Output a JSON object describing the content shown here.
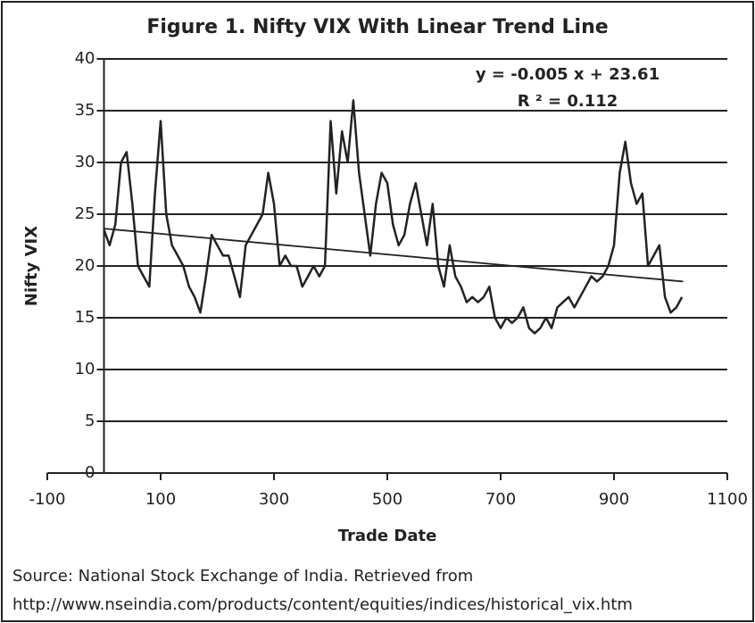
{
  "chart_data": {
    "type": "line",
    "title": "Figure 1. Nifty VIX With Linear Trend Line",
    "xlabel": "Trade Date",
    "ylabel": "Nifty VIX",
    "annotations": [
      "y = -0.005 x + 23.61",
      "R ² = 0.112"
    ],
    "source": [
      "Source: National Stock Exchange of India. Retrieved from",
      "http://www.nseindia.com/products/content/equities/indices/historical_vix.htm"
    ],
    "xlim": [
      -100,
      1100
    ],
    "xticks": [
      -100,
      100,
      300,
      500,
      700,
      900,
      1100
    ],
    "ylim": [
      0,
      40
    ],
    "yticks": [
      0,
      5,
      10,
      15,
      20,
      25,
      30,
      35,
      40
    ],
    "grid": true,
    "series": [
      {
        "color": "#222222",
        "x": [
          0,
          10,
          20,
          30,
          40,
          50,
          60,
          70,
          80,
          90,
          100,
          110,
          120,
          130,
          140,
          150,
          160,
          170,
          180,
          190,
          200,
          210,
          220,
          230,
          240,
          250,
          260,
          270,
          280,
          290,
          300,
          310,
          320,
          330,
          340,
          350,
          360,
          370,
          380,
          390,
          400,
          410,
          420,
          430,
          440,
          450,
          460,
          470,
          480,
          490,
          500,
          510,
          520,
          530,
          540,
          550,
          560,
          570,
          580,
          590,
          600,
          610,
          620,
          630,
          640,
          650,
          660,
          670,
          680,
          690,
          700,
          710,
          720,
          730,
          740,
          750,
          760,
          770,
          780,
          790,
          800,
          810,
          820,
          830,
          840,
          850,
          860,
          870,
          880,
          890,
          900,
          910,
          920,
          930,
          940,
          950,
          960,
          970,
          980,
          990,
          1000,
          1010,
          1020
        ],
        "values": [
          23.5,
          22,
          24,
          30,
          31,
          26,
          20,
          19,
          18,
          27,
          34,
          25,
          22,
          21,
          20,
          18,
          17,
          15.5,
          19,
          23,
          22,
          21,
          21,
          19,
          17,
          22,
          23,
          24,
          25,
          29,
          26,
          20,
          21,
          20,
          20,
          18,
          19,
          20,
          19,
          20,
          34,
          27,
          33,
          30,
          36,
          29,
          25,
          21,
          26,
          29,
          28,
          24,
          22,
          23,
          26,
          28,
          25,
          22,
          26,
          20,
          18,
          22,
          19,
          18,
          16.5,
          17,
          16.5,
          17,
          18,
          15,
          14,
          15,
          14.5,
          15,
          16,
          14,
          13.5,
          14,
          15,
          14,
          16,
          16.5,
          17,
          16,
          17,
          18,
          19,
          18.5,
          19,
          20,
          22,
          29,
          32,
          28,
          26,
          27,
          20,
          21,
          22,
          17,
          15.5,
          16,
          17
        ]
      },
      {
        "color": "#222222",
        "x": [
          0,
          1022
        ],
        "values": [
          23.61,
          18.5
        ]
      }
    ]
  }
}
